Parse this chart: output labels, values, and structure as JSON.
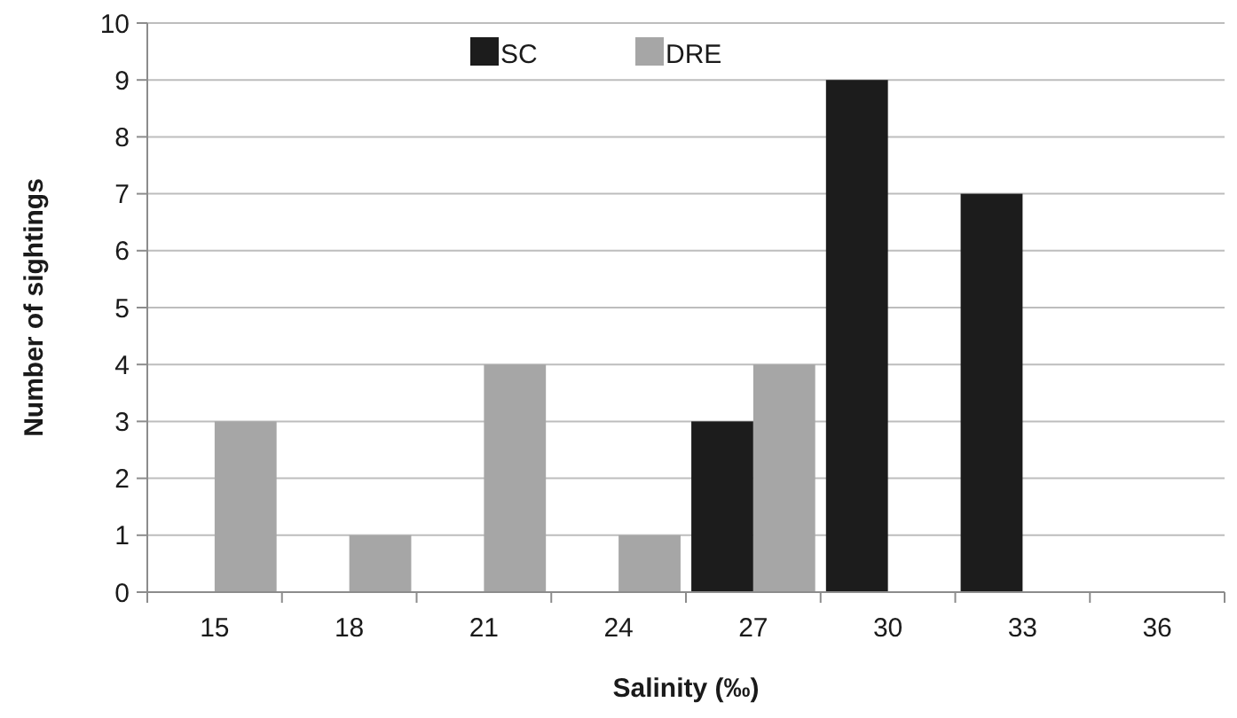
{
  "chart_data": {
    "type": "bar",
    "xlabel": "Salinity (‰)",
    "ylabel": "Number of sightings",
    "categories": [
      "15",
      "18",
      "21",
      "24",
      "27",
      "30",
      "33",
      "36"
    ],
    "series": [
      {
        "name": "SC",
        "color": "#1c1c1c",
        "values": [
          0,
          0,
          0,
          0,
          3,
          9,
          7,
          0
        ]
      },
      {
        "name": "DRE",
        "color": "#a6a6a6",
        "values": [
          3,
          1,
          4,
          1,
          4,
          0,
          0,
          0
        ]
      }
    ],
    "ylim": [
      0,
      10
    ],
    "yticks": [
      0,
      1,
      2,
      3,
      4,
      5,
      6,
      7,
      8,
      9,
      10
    ],
    "grid": "y",
    "legend": "top"
  }
}
